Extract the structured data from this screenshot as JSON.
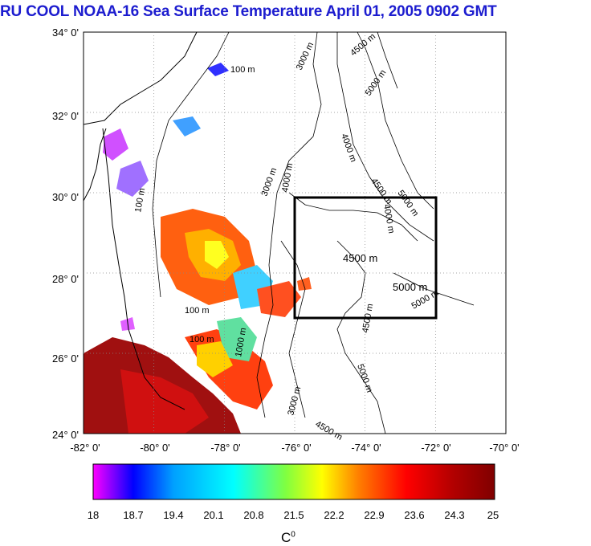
{
  "title": "RU COOL  NOAA-16 Sea Surface Temperature April 01, 2005 0902 GMT",
  "map": {
    "lat_labels": [
      "34° 0'",
      "32° 0'",
      "30° 0'",
      "28° 0'",
      "26° 0'",
      "24° 0'"
    ],
    "lon_labels": [
      "-82° 0'",
      "-80° 0'",
      "-78° 0'",
      "-76° 0'",
      "-74° 0'",
      "-72° 0'",
      "-70° 0'"
    ],
    "lat_range": [
      24,
      34
    ],
    "lon_range": [
      -82,
      -70
    ],
    "grid": "dotted",
    "study_box": {
      "lon": [
        -76,
        -72
      ],
      "lat": [
        27,
        30
      ]
    },
    "contour_labels": [
      "100 m",
      "100 m",
      "100 m",
      "3000 m",
      "3000 m",
      "4500 m",
      "5000 m",
      "4000 m",
      "4500 m",
      "5000 m",
      "4000 m",
      "4000 m",
      "4500 m",
      "5000 m",
      "5000 m",
      "4500 m",
      "5000 m",
      "100 m",
      "3000 m",
      "4500 m",
      "1000 m"
    ]
  },
  "colorbar": {
    "ticks": [
      "18",
      "18.7",
      "19.4",
      "20.1",
      "20.8",
      "21.5",
      "22.2",
      "22.9",
      "23.6",
      "24.3",
      "25"
    ],
    "unit": "C",
    "unit_sup": "0",
    "colors": [
      "#ff00ff",
      "#0000ff",
      "#00a0ff",
      "#00ffff",
      "#80ff40",
      "#ffff00",
      "#ff8000",
      "#ff0000",
      "#b00000",
      "#800000"
    ]
  }
}
